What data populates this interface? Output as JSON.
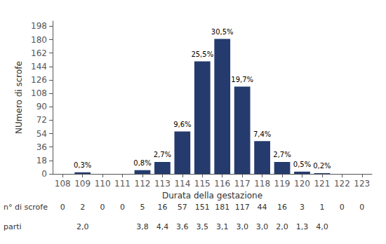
{
  "chart_data": {
    "type": "bar",
    "x": [
      108,
      109,
      110,
      111,
      112,
      113,
      114,
      115,
      116,
      117,
      118,
      119,
      120,
      121,
      122,
      123
    ],
    "values": [
      0,
      2,
      0,
      0,
      5,
      16,
      57,
      151,
      181,
      117,
      44,
      16,
      3,
      1,
      0,
      0
    ],
    "percent_labels": [
      null,
      "0,3%",
      null,
      null,
      "0,8%",
      "2,7%",
      "9,6%",
      "25,5%",
      "30,5%",
      "19,7%",
      "7,4%",
      "2,7%",
      "0,5%",
      "0,2%",
      null,
      null
    ],
    "color": "#253B6E",
    "xlabel": "Durata della gestazione",
    "ylabel": "NUmero di scrofe",
    "xlim": [
      107.5,
      123.5
    ],
    "xticks": [
      108,
      109,
      110,
      111,
      112,
      113,
      114,
      115,
      116,
      117,
      118,
      119,
      120,
      121,
      122,
      123
    ],
    "ylim": [
      0,
      205
    ],
    "yticks": [
      0,
      18,
      36,
      54,
      72,
      90,
      108,
      126,
      144,
      162,
      180,
      198
    ],
    "grid": false,
    "table": [
      {
        "label": "n° di scrofe",
        "values": [
          "0",
          "2",
          "0",
          "0",
          "5",
          "16",
          "57",
          "151",
          "181",
          "117",
          "44",
          "16",
          "3",
          "1",
          "0",
          "0"
        ]
      },
      {
        "label": "parti",
        "values": [
          null,
          "2,0",
          null,
          null,
          "3,8",
          "4,4",
          "3,6",
          "3,5",
          "3,1",
          "3,0",
          "3,0",
          "2,0",
          "1,3",
          "4,0",
          null,
          null
        ]
      }
    ]
  }
}
